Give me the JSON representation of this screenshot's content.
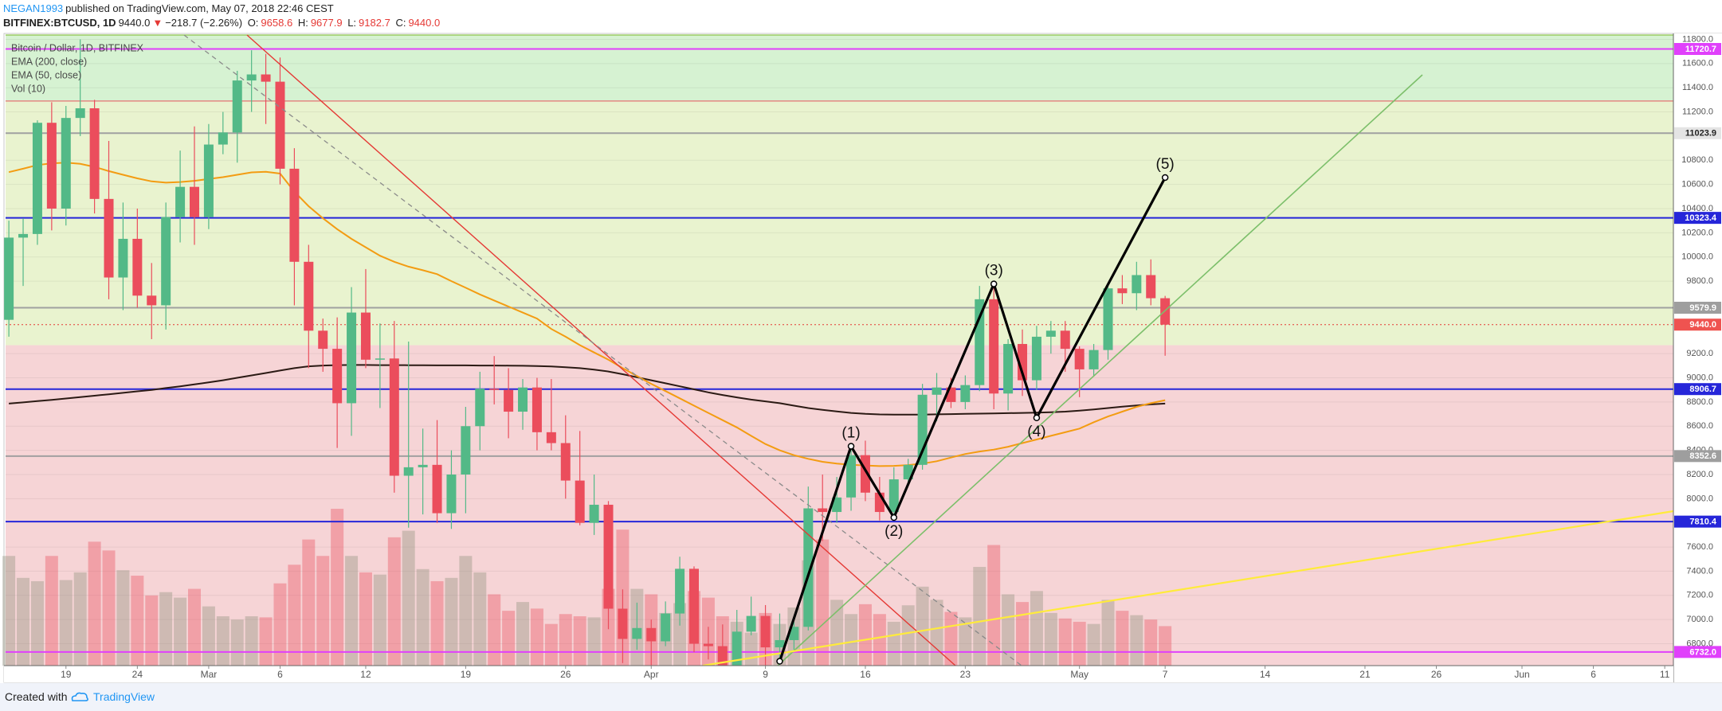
{
  "header": {
    "author": "NEGAN1993",
    "published": "published on TradingView.com, May 07, 2018 22:46 CEST",
    "symbol": "BITFINEX:BTCUSD, 1D",
    "last": "9440.0",
    "arrow": "▼",
    "change": "−218.7 (−2.26%)",
    "o_label": "O:",
    "o": "9658.6",
    "h_label": "H:",
    "h": "9677.9",
    "l_label": "L:",
    "l": "9182.7",
    "c_label": "C:",
    "c": "9440.0"
  },
  "footer": {
    "created": "Created with",
    "brand": "TradingView"
  },
  "chart_data": {
    "type": "candlestick",
    "categories": [
      null,
      null,
      null,
      null,
      "19",
      null,
      null,
      null,
      null,
      "24",
      null,
      null,
      null,
      null,
      "Mar",
      null,
      null,
      null,
      null,
      "6",
      null,
      null,
      null,
      null,
      null,
      "12",
      null,
      null,
      null,
      null,
      null,
      null,
      "19",
      null,
      null,
      null,
      null,
      null,
      null,
      "26",
      null,
      null,
      null,
      null,
      null,
      "Apr",
      null,
      null,
      null,
      null,
      null,
      null,
      null,
      "9",
      null,
      null,
      null,
      null,
      null,
      null,
      "16",
      null,
      null,
      null,
      null,
      null,
      null,
      "23",
      null,
      null,
      null,
      null,
      null,
      null,
      null,
      "May",
      null,
      null,
      null,
      null,
      null,
      "7",
      null,
      null,
      null,
      null,
      null,
      null,
      "14",
      null,
      null,
      null,
      null,
      null,
      null,
      "21",
      null,
      null,
      null,
      null,
      "26",
      null,
      null,
      null,
      null,
      null,
      "Jun",
      null,
      null,
      null,
      null,
      "6",
      null,
      null,
      null,
      null,
      "11"
    ],
    "candles": {
      "name": "Bitcoin / Dollar, 1D, BITFINEX",
      "up_color": "#53b987",
      "down_color": "#eb4d5c",
      "open": [
        9480,
        10160,
        10190,
        11110,
        10400,
        11150,
        11230,
        10480,
        9830,
        10150,
        9680,
        9600,
        10330,
        10580,
        10330,
        10930,
        11030,
        11460,
        11510,
        11450,
        10730,
        9960,
        9390,
        9240,
        8790,
        9540,
        9150,
        9160,
        8190,
        8260,
        8280,
        7880,
        8200,
        8600,
        8910,
        8900,
        8720,
        8920,
        8550,
        8460,
        8150,
        7800,
        7950,
        7090,
        6840,
        6930,
        6820,
        7050,
        7420,
        6800,
        6780,
        6620,
        6900,
        7030,
        6770,
        6830,
        6940,
        7920,
        7890,
        8010,
        8360,
        8050,
        7890,
        8160,
        8280,
        8860,
        8920,
        8800,
        8940,
        9650,
        8870,
        9280,
        8980,
        9340,
        9390,
        9240,
        9070,
        9230,
        9740,
        9700,
        9850,
        9658.6,
        null,
        null,
        null,
        null,
        null,
        null,
        null,
        null,
        null,
        null,
        null,
        null,
        null,
        null,
        null,
        null,
        null,
        null,
        null,
        null,
        null,
        null,
        null,
        null,
        null,
        null,
        null,
        null,
        null,
        null,
        null,
        null,
        null,
        null,
        null
      ],
      "high": [
        10300,
        10320,
        11130,
        11280,
        11250,
        11800,
        11300,
        10960,
        10450,
        10400,
        9950,
        10450,
        10880,
        11080,
        11100,
        11200,
        11540,
        11710,
        11680,
        11650,
        10900,
        10100,
        9490,
        9500,
        9750,
        9900,
        9450,
        9470,
        9300,
        8580,
        8650,
        8400,
        8760,
        9050,
        9180,
        9080,
        8990,
        9000,
        8990,
        8690,
        8560,
        8200,
        7980,
        7250,
        7140,
        7000,
        7150,
        7520,
        7440,
        6940,
        6960,
        7080,
        7190,
        7120,
        7050,
        6980,
        8100,
        8200,
        8180,
        8420,
        8480,
        8180,
        8260,
        8330,
        8950,
        9040,
        9000,
        9020,
        9760,
        9750,
        9320,
        9400,
        9430,
        9470,
        9470,
        9260,
        9280,
        9780,
        9850,
        9960,
        9980,
        9677.9,
        null,
        null,
        null,
        null,
        null,
        null,
        null,
        null,
        null,
        null,
        null,
        null,
        null,
        null,
        null,
        null,
        null,
        null,
        null,
        null,
        null,
        null,
        null,
        null,
        null,
        null,
        null,
        null,
        null,
        null,
        null,
        null,
        null,
        null,
        null
      ],
      "low": [
        9340,
        9760,
        10100,
        10220,
        10260,
        11000,
        10360,
        9650,
        9560,
        9580,
        9320,
        9400,
        10120,
        10100,
        10230,
        10850,
        10780,
        11200,
        11100,
        10600,
        9600,
        9080,
        9050,
        8420,
        8520,
        9080,
        8750,
        8050,
        7760,
        7870,
        7800,
        7750,
        7880,
        8400,
        8780,
        8500,
        8570,
        8400,
        8400,
        8000,
        7780,
        7700,
        6920,
        6640,
        6750,
        6580,
        6780,
        6950,
        6730,
        6670,
        6580,
        6550,
        6870,
        6620,
        6640,
        6750,
        6910,
        7650,
        7800,
        7900,
        7980,
        7820,
        7860,
        8120,
        8240,
        8640,
        8750,
        8740,
        8890,
        8740,
        8730,
        8850,
        8900,
        9200,
        9050,
        8840,
        9010,
        9150,
        9610,
        9560,
        9600,
        9182.7,
        null,
        null,
        null,
        null,
        null,
        null,
        null,
        null,
        null,
        null,
        null,
        null,
        null,
        null,
        null,
        null,
        null,
        null,
        null,
        null,
        null,
        null,
        null,
        null,
        null,
        null,
        null,
        null,
        null,
        null,
        null,
        null,
        null,
        null,
        null
      ],
      "close": [
        10160,
        10190,
        11110,
        10400,
        11150,
        11230,
        10480,
        9830,
        10150,
        9680,
        9600,
        10330,
        10580,
        10330,
        10930,
        11030,
        11460,
        11510,
        11450,
        10730,
        9960,
        9390,
        9240,
        8790,
        9540,
        9150,
        9160,
        8190,
        8260,
        8280,
        7880,
        8200,
        8600,
        8910,
        8900,
        8720,
        8920,
        8550,
        8460,
        8150,
        7800,
        7950,
        7090,
        6840,
        6930,
        6820,
        7050,
        7420,
        6800,
        6780,
        6620,
        6900,
        7030,
        6770,
        6830,
        6940,
        7920,
        7890,
        8010,
        8360,
        8050,
        7890,
        8160,
        8280,
        8860,
        8920,
        8800,
        8940,
        9650,
        8870,
        9280,
        8980,
        9340,
        9390,
        9240,
        9070,
        9230,
        9740,
        9700,
        9850,
        9658.6,
        9440,
        null,
        null,
        null,
        null,
        null,
        null,
        null,
        null,
        null,
        null,
        null,
        null,
        null,
        null,
        null,
        null,
        null,
        null,
        null,
        null,
        null,
        null,
        null,
        null,
        null,
        null,
        null,
        null,
        null,
        null,
        null,
        null,
        null,
        null,
        null
      ]
    },
    "volume": {
      "name": "Vol (10)",
      "ylim": [
        0,
        575
      ],
      "up_color": "rgba(150,150,130,0.42)",
      "down_color": "rgba(235,77,92,0.38)",
      "values": [
        100,
        80,
        77,
        100,
        78,
        85,
        113,
        105,
        87,
        82,
        64,
        67,
        62,
        70,
        54,
        45,
        42,
        45,
        44,
        75,
        92,
        115,
        100,
        143,
        100,
        85,
        83,
        117,
        123,
        88,
        77,
        80,
        100,
        85,
        65,
        50,
        58,
        52,
        38,
        47,
        45,
        44,
        70,
        124,
        70,
        65,
        48,
        57,
        68,
        62,
        45,
        40,
        30,
        48,
        38,
        53,
        96,
        115,
        60,
        47,
        56,
        47,
        40,
        55,
        72,
        60,
        49,
        44,
        90,
        110,
        65,
        58,
        68,
        48,
        43,
        40,
        38,
        60,
        50,
        46,
        42,
        36,
        null,
        null,
        null,
        null,
        null,
        null,
        null,
        null,
        null,
        null,
        null,
        null,
        null,
        null,
        null,
        null,
        null,
        null,
        null,
        null,
        null,
        null,
        null,
        null,
        null,
        null,
        null,
        null,
        null,
        null,
        null,
        null,
        null,
        null,
        null
      ]
    },
    "series": [
      {
        "name": "EMA (200, close)",
        "color": "#2b1a14",
        "values": [
          8787,
          8797,
          8808,
          8818,
          8829,
          8840,
          8852,
          8864,
          8876,
          8888,
          8900,
          8915,
          8930,
          8946,
          8962,
          8980,
          9000,
          9020,
          9040,
          9060,
          9080,
          9095,
          9102,
          9105,
          9106,
          9106,
          9105,
          9105,
          9104,
          9104,
          9103,
          9103,
          9103,
          9102,
          9102,
          9101,
          9100,
          9098,
          9094,
          9088,
          9080,
          9068,
          9052,
          9030,
          9005,
          8980,
          8955,
          8930,
          8905,
          8880,
          8858,
          8838,
          8820,
          8805,
          8790,
          8770,
          8750,
          8735,
          8722,
          8710,
          8702,
          8697,
          8695,
          8695,
          8696,
          8698,
          8700,
          8702,
          8704,
          8706,
          8708,
          8710,
          8712,
          8715,
          8720,
          8728,
          8738,
          8750,
          8762,
          8772,
          8780,
          8787,
          null,
          null,
          null,
          null,
          null,
          null,
          null,
          null,
          null,
          null,
          null,
          null,
          null,
          null,
          null,
          null,
          null,
          null,
          null,
          null,
          null,
          null,
          null,
          null,
          null,
          null,
          null,
          null,
          null,
          null,
          null,
          null,
          null,
          null,
          null
        ]
      },
      {
        "name": "EMA (50, close)",
        "color": "#f39c12",
        "values": [
          10702,
          10730,
          10760,
          10775,
          10780,
          10770,
          10745,
          10710,
          10680,
          10650,
          10625,
          10615,
          10620,
          10630,
          10645,
          10660,
          10680,
          10700,
          10705,
          10690,
          10540,
          10420,
          10320,
          10230,
          10150,
          10080,
          10010,
          9960,
          9920,
          9890,
          9858,
          9800,
          9745,
          9690,
          9640,
          9590,
          9540,
          9490,
          9404,
          9340,
          9270,
          9210,
          9150,
          9080,
          9015,
          8950,
          8890,
          8830,
          8770,
          8710,
          8650,
          8590,
          8520,
          8452,
          8400,
          8360,
          8330,
          8305,
          8290,
          8280,
          8275,
          8270,
          8272,
          8278,
          8290,
          8310,
          8340,
          8370,
          8390,
          8406,
          8430,
          8460,
          8490,
          8520,
          8550,
          8580,
          8633,
          8680,
          8720,
          8760,
          8790,
          8815,
          null,
          null,
          null,
          null,
          null,
          null,
          null,
          null,
          null,
          null,
          null,
          null,
          null,
          null,
          null,
          null,
          null,
          null,
          null,
          null,
          null,
          null,
          null,
          null,
          null,
          null,
          null,
          null,
          null,
          null,
          null,
          null,
          null,
          null,
          null
        ]
      }
    ],
    "ylim": [
      6619,
      11836
    ],
    "yticks": [
      {
        "value": 6800,
        "label": "6800.0"
      },
      {
        "value": 7000,
        "label": "7000.0"
      },
      {
        "value": 7200,
        "label": "7200.0"
      },
      {
        "value": 7400,
        "label": "7400.0"
      },
      {
        "value": 7600,
        "label": "7600.0"
      },
      {
        "value": 8000,
        "label": "8000.0"
      },
      {
        "value": 8200,
        "label": "8200.0"
      },
      {
        "value": 8400,
        "label": "8400.0"
      },
      {
        "value": 8600,
        "label": "8600.0"
      },
      {
        "value": 8800,
        "label": "8800.0"
      },
      {
        "value": 9000,
        "label": "9000.0"
      },
      {
        "value": 9200,
        "label": "9200.0"
      },
      {
        "value": 9800,
        "label": "9800.0"
      },
      {
        "value": 10000,
        "label": "10000.0"
      },
      {
        "value": 10200,
        "label": "10200.0"
      },
      {
        "value": 10400,
        "label": "10400.0"
      },
      {
        "value": 10600,
        "label": "10600.0"
      },
      {
        "value": 10800,
        "label": "10800.0"
      },
      {
        "value": 11200,
        "label": "11200.0"
      },
      {
        "value": 11400,
        "label": "11400.0"
      },
      {
        "value": 11600,
        "label": "11600.0"
      },
      {
        "value": 11800,
        "label": "11800.0"
      }
    ],
    "grid": true,
    "zones": [
      {
        "from": 11290,
        "to": 11836,
        "color": "#d6f2d2",
        "edge": "#8bc34a"
      },
      {
        "from": 9270,
        "to": 11290,
        "color": "#e9f3cf",
        "edge": "#e57373"
      },
      {
        "from": 6619,
        "to": 9270,
        "color": "#f6d4d6"
      }
    ],
    "levels": [
      {
        "value": 11720.7,
        "color": "#e040fb",
        "tag_color": "#e040fb",
        "text_color": "#ffffff"
      },
      {
        "value": 11023.9,
        "color": "#a0a0a0",
        "tag_color": "#e4e4e4",
        "text_color": "#222222"
      },
      {
        "value": 10323.4,
        "color": "#2626d9",
        "tag_color": "#2626d9",
        "text_color": "#ffffff"
      },
      {
        "value": 9579.9,
        "color": "#a0a0a0",
        "tag_color": "#9e9e9e",
        "text_color": "#ffffff"
      },
      {
        "value": 9440,
        "label": "9440.0",
        "color": "#e53935",
        "tag_color": "#ef5350",
        "text_color": "#ffffff",
        "dash": true
      },
      {
        "value": 8906.7,
        "color": "#2626d9",
        "tag_color": "#2626d9",
        "text_color": "#ffffff"
      },
      {
        "value": 8352.6,
        "color": "#a0a0a0",
        "tag_color": "#9e9e9e",
        "text_color": "#ffffff"
      },
      {
        "value": 7810.4,
        "color": "#2626d9",
        "tag_color": "#2626d9",
        "text_color": "#ffffff"
      },
      {
        "value": 6732,
        "label": "6732.0",
        "color": "#e040fb",
        "tag_color": "#e040fb",
        "text_color": "#ffffff"
      }
    ],
    "wave": {
      "x": [
        54,
        59,
        62,
        69,
        72,
        81
      ],
      "values": [
        6655,
        8434,
        7844,
        9777,
        8669,
        10657
      ],
      "labels": [
        null,
        "(1)",
        "(2)",
        "(3)",
        "(4)",
        "(5)"
      ],
      "color": "#000000"
    }
  }
}
